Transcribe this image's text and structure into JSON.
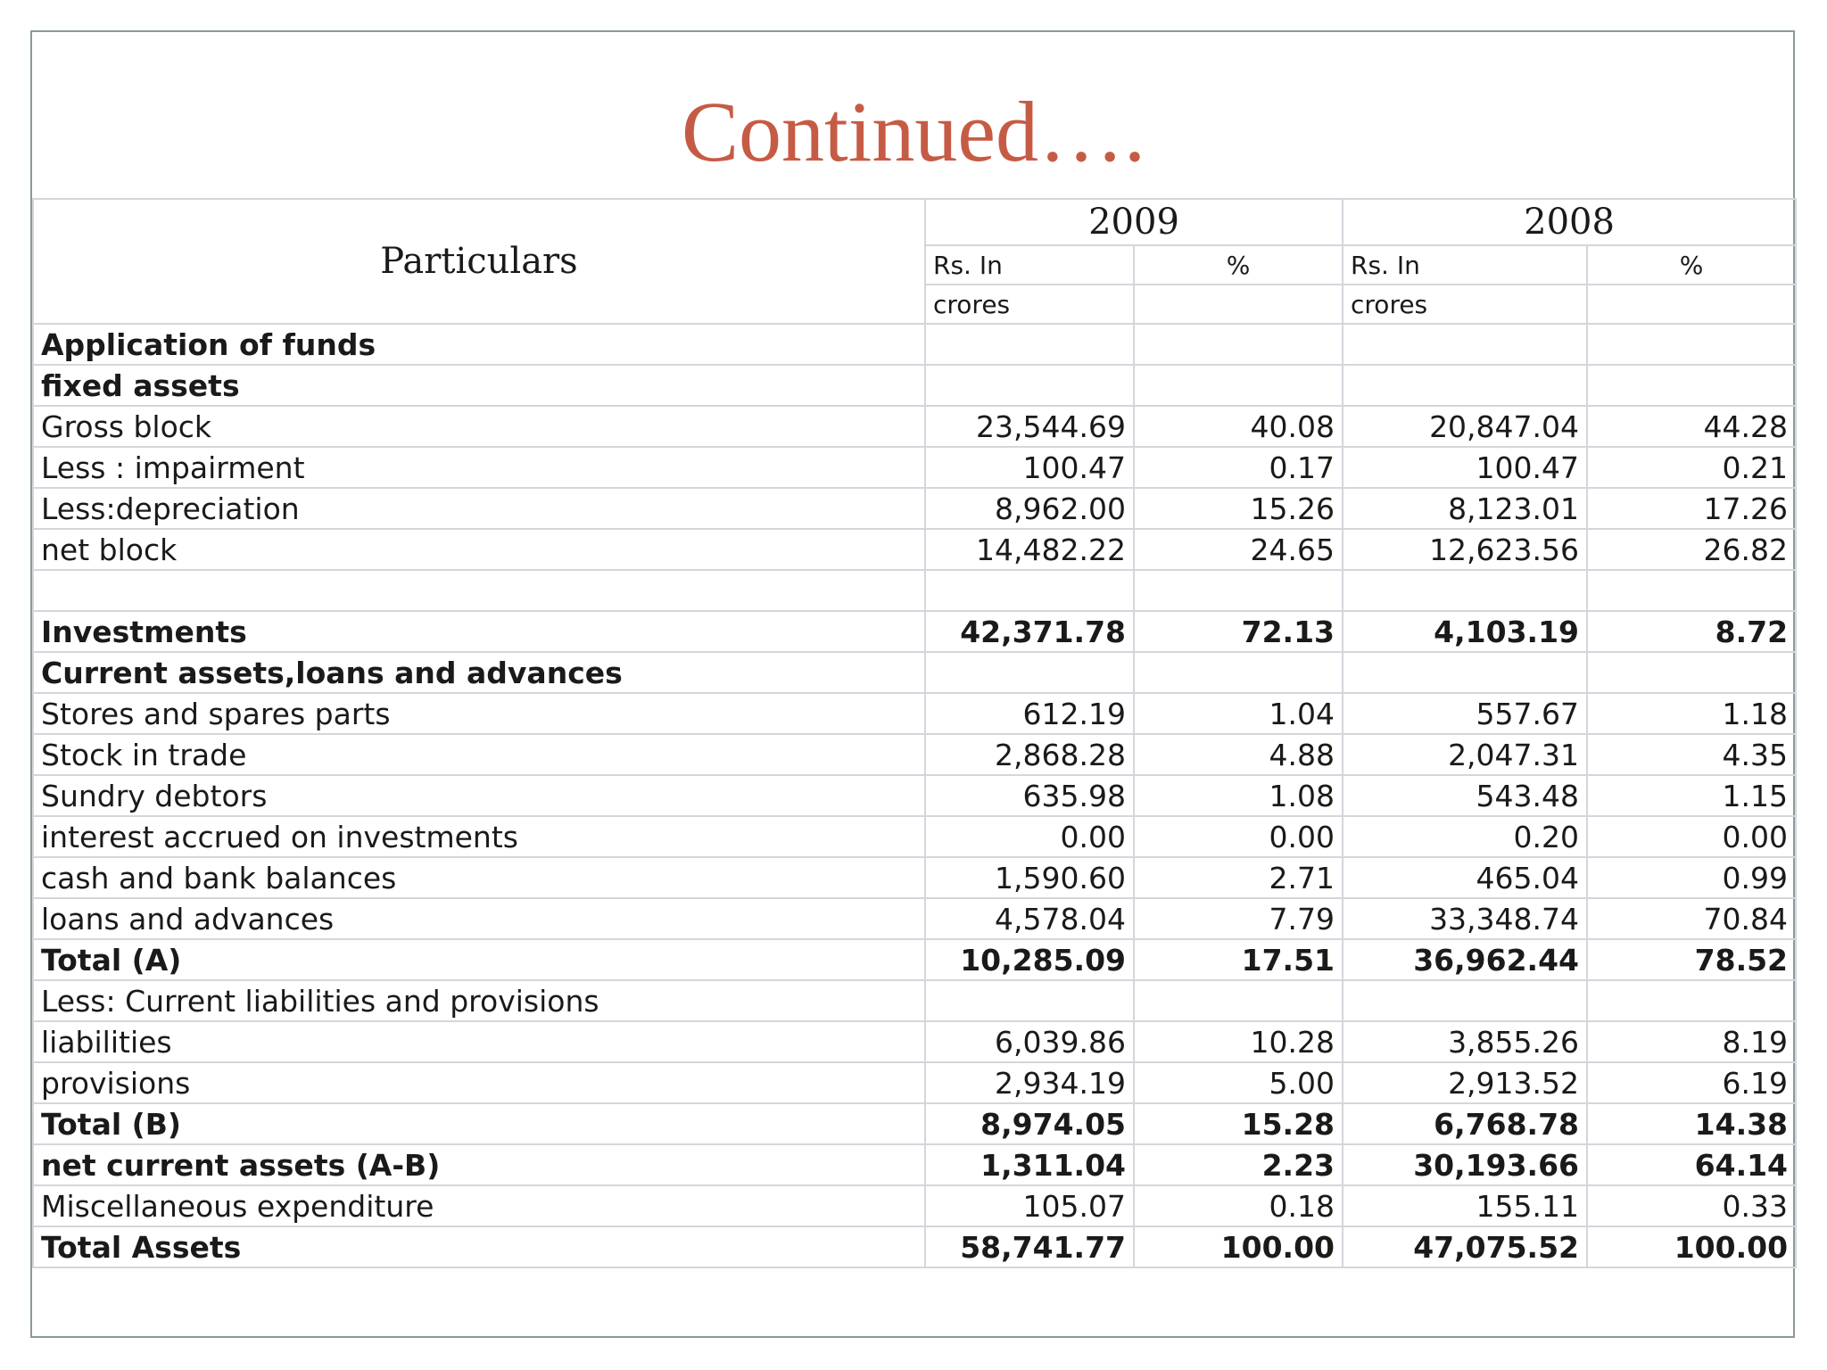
{
  "title": "Continued….",
  "table": {
    "particulars_header": "Particulars",
    "years": [
      "2009",
      "2008"
    ],
    "sub_rs_line1": "Rs. In",
    "sub_rs_line2": "crores",
    "sub_pct": "%",
    "rows": [
      {
        "label": "Application of funds",
        "bold": true,
        "v": [
          "",
          "",
          "",
          ""
        ]
      },
      {
        "label": "fixed assets",
        "bold": true,
        "v": [
          "",
          "",
          "",
          ""
        ]
      },
      {
        "label": "Gross block",
        "bold": false,
        "v": [
          "23,544.69",
          "40.08",
          "20,847.04",
          "44.28"
        ]
      },
      {
        "label": "Less : impairment",
        "bold": false,
        "v": [
          "100.47",
          "0.17",
          "100.47",
          "0.21"
        ]
      },
      {
        "label": "Less:depreciation",
        "bold": false,
        "v": [
          "8,962.00",
          "15.26",
          "8,123.01",
          "17.26"
        ]
      },
      {
        "label": "net block",
        "bold": false,
        "v": [
          "14,482.22",
          "24.65",
          "12,623.56",
          "26.82"
        ]
      },
      {
        "label": "",
        "bold": false,
        "v": [
          "",
          "",
          "",
          ""
        ]
      },
      {
        "label": "Investments",
        "bold": true,
        "v": [
          "42,371.78",
          "72.13",
          "4,103.19",
          "8.72"
        ]
      },
      {
        "label": "Current assets,loans and advances",
        "bold": true,
        "v": [
          "",
          "",
          "",
          ""
        ]
      },
      {
        "label": "Stores and spares parts",
        "bold": false,
        "v": [
          "612.19",
          "1.04",
          "557.67",
          "1.18"
        ]
      },
      {
        "label": "Stock in trade",
        "bold": false,
        "v": [
          "2,868.28",
          "4.88",
          "2,047.31",
          "4.35"
        ]
      },
      {
        "label": "Sundry debtors",
        "bold": false,
        "v": [
          "635.98",
          "1.08",
          "543.48",
          "1.15"
        ]
      },
      {
        "label": "interest accrued on investments",
        "bold": false,
        "v": [
          "0.00",
          "0.00",
          "0.20",
          "0.00"
        ]
      },
      {
        "label": "cash and bank balances",
        "bold": false,
        "v": [
          "1,590.60",
          "2.71",
          "465.04",
          "0.99"
        ]
      },
      {
        "label": "loans and advances",
        "bold": false,
        "v": [
          "4,578.04",
          "7.79",
          "33,348.74",
          "70.84"
        ]
      },
      {
        "label": "Total (A)",
        "bold": true,
        "v": [
          "10,285.09",
          "17.51",
          "36,962.44",
          "78.52"
        ]
      },
      {
        "label": "Less: Current liabilities and provisions",
        "bold": false,
        "v": [
          "",
          "",
          "",
          ""
        ]
      },
      {
        "label": "liabilities",
        "bold": false,
        "v": [
          "6,039.86",
          "10.28",
          "3,855.26",
          "8.19"
        ]
      },
      {
        "label": "provisions",
        "bold": false,
        "v": [
          "2,934.19",
          "5.00",
          "2,913.52",
          "6.19"
        ]
      },
      {
        "label": "Total (B)",
        "bold": true,
        "v": [
          "8,974.05",
          "15.28",
          "6,768.78",
          "14.38"
        ]
      },
      {
        "label": "net current assets (A-B)",
        "bold": true,
        "v": [
          "1,311.04",
          "2.23",
          "30,193.66",
          "64.14"
        ]
      },
      {
        "label": "Miscellaneous expenditure",
        "bold": false,
        "v": [
          "105.07",
          "0.18",
          "155.11",
          "0.33"
        ]
      },
      {
        "label": "Total Assets",
        "bold": true,
        "v": [
          "58,741.77",
          "100.00",
          "47,075.52",
          "100.00"
        ]
      }
    ]
  }
}
